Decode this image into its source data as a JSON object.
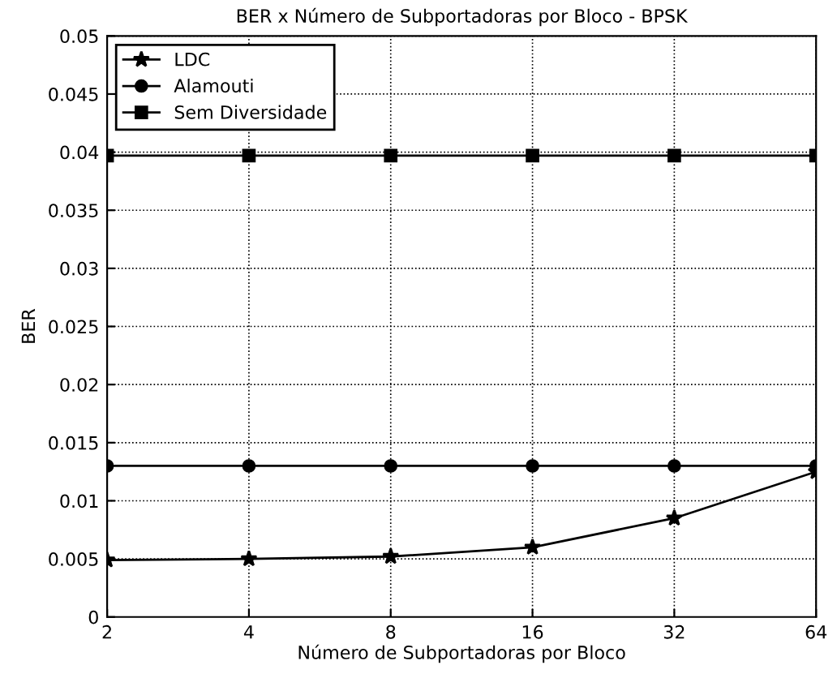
{
  "chart_data": {
    "type": "line",
    "title": "BER x Número de Subportadoras por Bloco - BPSK",
    "xlabel": "Número de Subportadoras por Bloco",
    "ylabel": "BER",
    "x": [
      2,
      4,
      8,
      16,
      32,
      64
    ],
    "series": [
      {
        "name": "LDC",
        "color": "#000000",
        "marker": "star",
        "values": [
          0.0049,
          0.005,
          0.0052,
          0.006,
          0.0085,
          0.0125
        ]
      },
      {
        "name": "Alamouti",
        "color": "#000000",
        "marker": "circle",
        "values": [
          0.013,
          0.013,
          0.013,
          0.013,
          0.013,
          0.013
        ]
      },
      {
        "name": "Sem Diversidade",
        "color": "#000000",
        "marker": "square",
        "values": [
          0.0397,
          0.0397,
          0.0397,
          0.0397,
          0.0397,
          0.0397
        ]
      }
    ],
    "log": "x",
    "xlim": [
      2,
      64
    ],
    "xticks": [
      2,
      4,
      8,
      16,
      32,
      64
    ],
    "ylim": [
      0,
      0.05
    ],
    "yticks": [
      0,
      {
        "value": 0.005,
        "label": "0.005"
      },
      {
        "value": 0.01,
        "label": "0.01"
      },
      {
        "value": 0.015,
        "label": "0.015"
      },
      {
        "value": 0.02,
        "label": "0.02"
      },
      {
        "value": 0.025,
        "label": "0.025"
      },
      {
        "value": 0.03,
        "label": "0.03"
      },
      {
        "value": 0.035,
        "label": "0.035"
      },
      {
        "value": 0.04,
        "label": "0.04"
      },
      {
        "value": 0.045,
        "label": "0.045"
      },
      {
        "value": 0.05,
        "label": "0.05"
      }
    ],
    "grid": true,
    "legend": "top left",
    "line_style": "solid"
  }
}
